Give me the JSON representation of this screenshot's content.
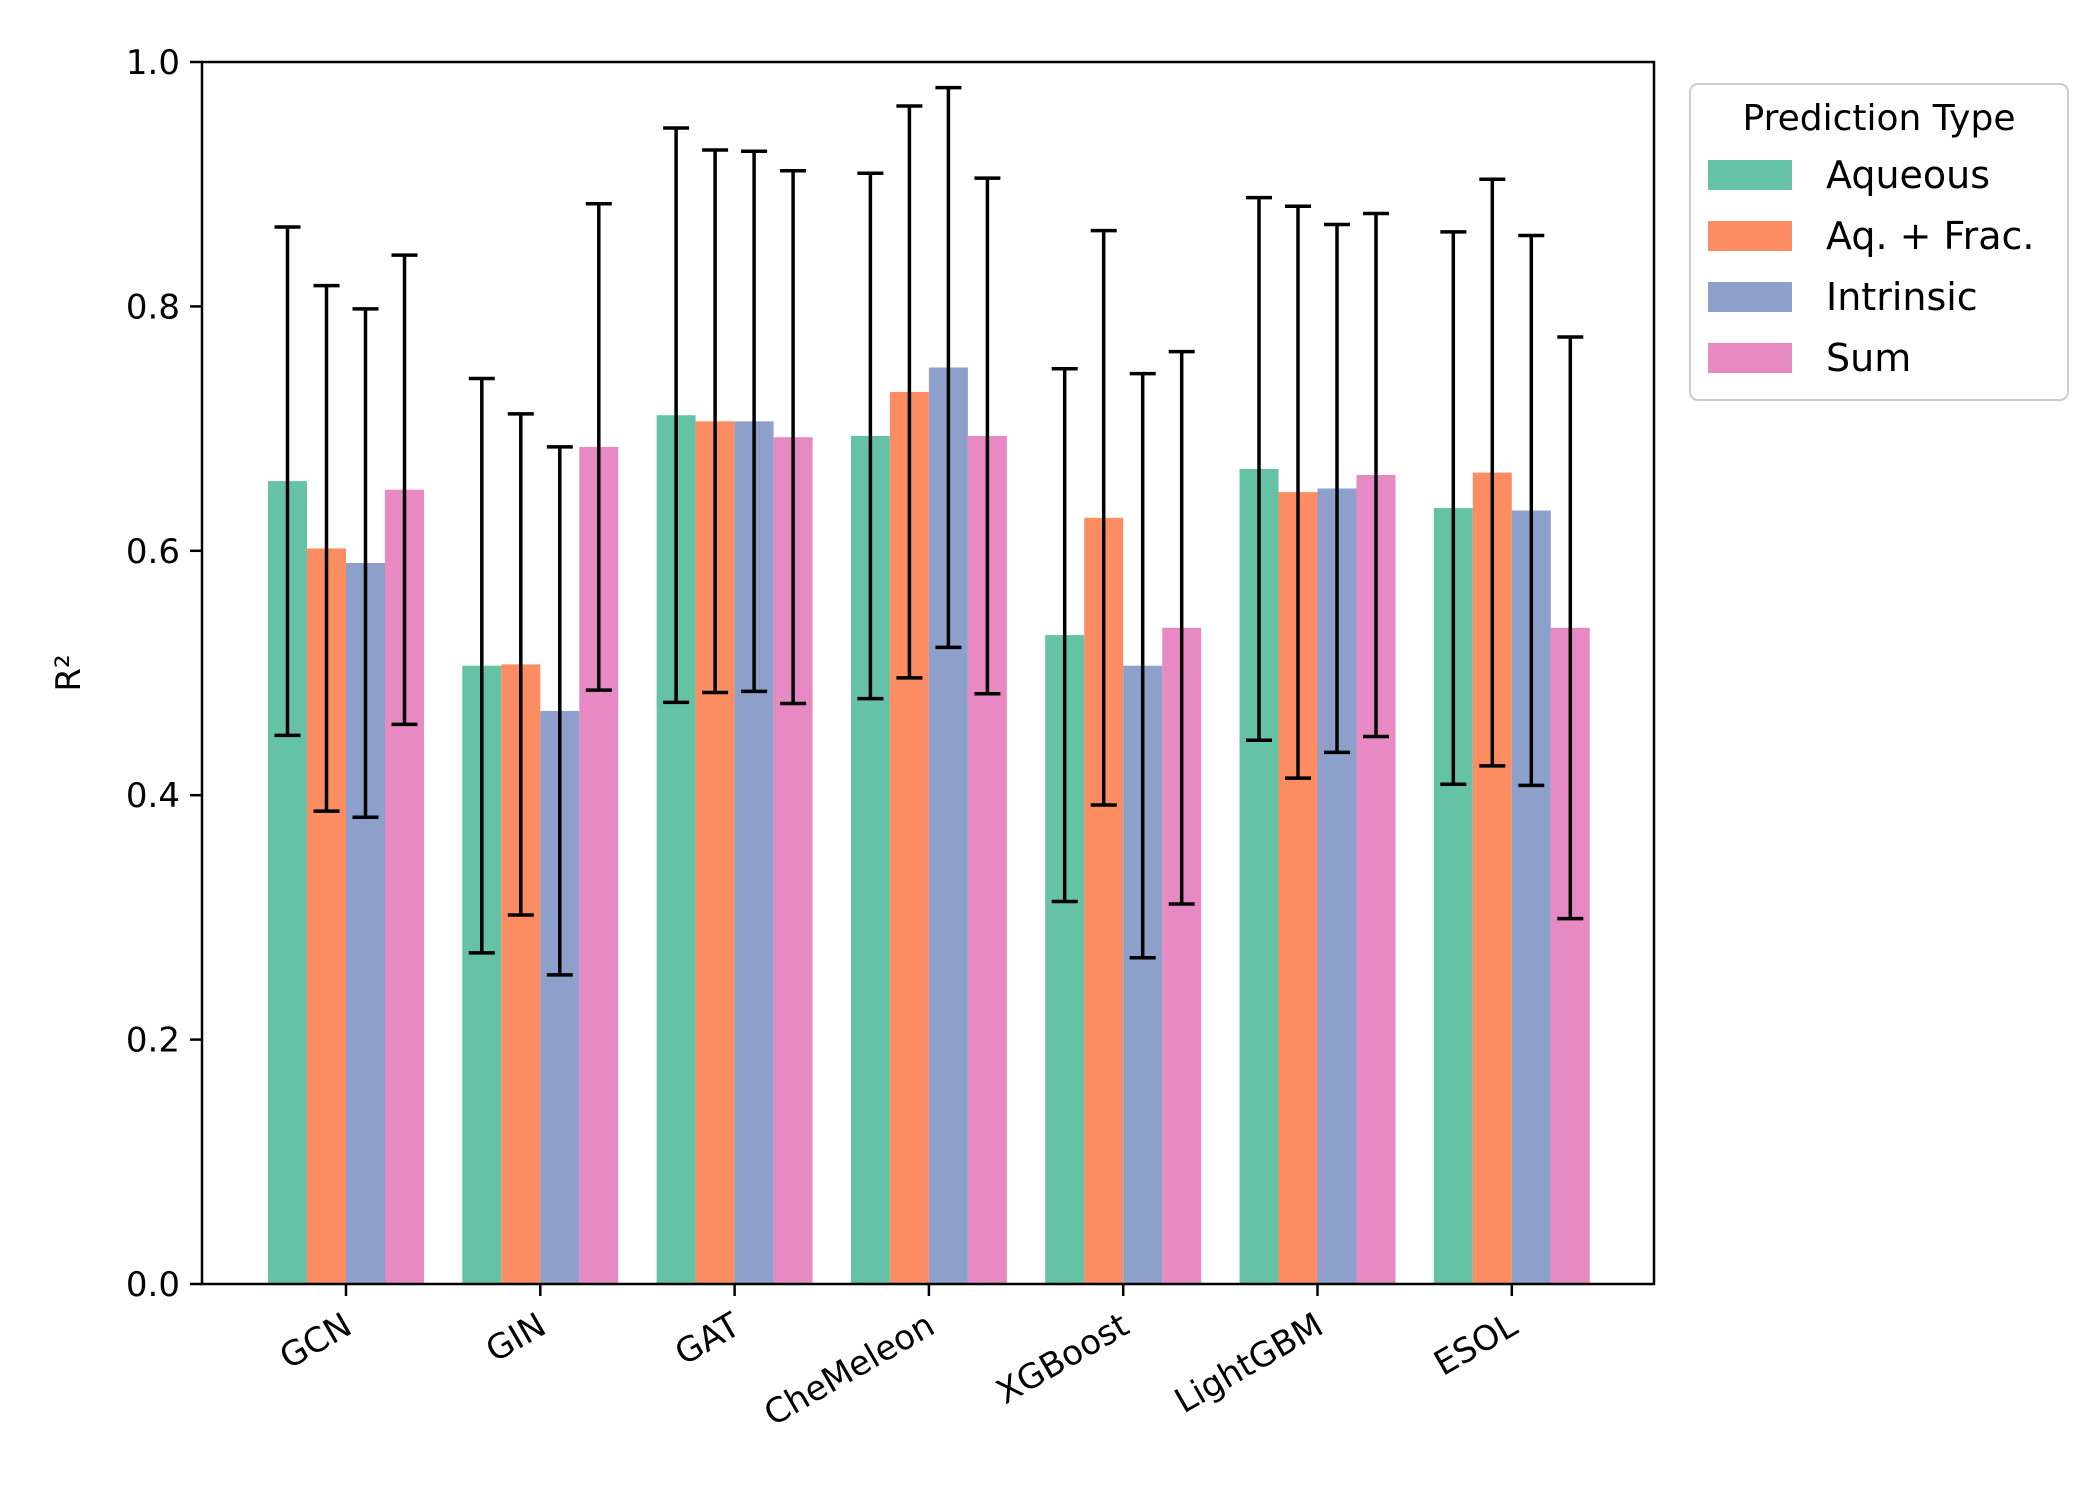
{
  "chart_data": {
    "type": "bar",
    "xlabel": "",
    "ylabel": "R²",
    "ylim": [
      0,
      1
    ],
    "yticks": [
      "0.0",
      "0.2",
      "0.4",
      "0.6",
      "0.8",
      "1.0"
    ],
    "grid": false,
    "legend": {
      "title": "Prediction Type",
      "placement": "outside-top-right"
    },
    "categories": [
      "GCN",
      "GIN",
      "GAT",
      "CheMeleon",
      "XGBoost",
      "LightGBM",
      "ESOL"
    ],
    "series": [
      {
        "name": "Aqueous",
        "color": "#66c2a5",
        "values": [
          0.657,
          0.506,
          0.711,
          0.694,
          0.531,
          0.667,
          0.635
        ],
        "errors": [
          0.208,
          0.235,
          0.235,
          0.215,
          0.218,
          0.222,
          0.226
        ]
      },
      {
        "name": "Aq. + Frac.",
        "color": "#fc8d62",
        "values": [
          0.602,
          0.507,
          0.706,
          0.73,
          0.627,
          0.648,
          0.664
        ],
        "errors": [
          0.215,
          0.205,
          0.222,
          0.234,
          0.235,
          0.234,
          0.24
        ]
      },
      {
        "name": "Intrinsic",
        "color": "#8da0cb",
        "values": [
          0.59,
          0.469,
          0.706,
          0.75,
          0.506,
          0.651,
          0.633
        ],
        "errors": [
          0.208,
          0.216,
          0.221,
          0.229,
          0.239,
          0.216,
          0.225
        ]
      },
      {
        "name": "Sum",
        "color": "#e78ac3",
        "values": [
          0.65,
          0.685,
          0.693,
          0.694,
          0.537,
          0.662,
          0.537
        ],
        "errors": [
          0.192,
          0.199,
          0.218,
          0.211,
          0.226,
          0.214,
          0.238
        ]
      }
    ]
  }
}
